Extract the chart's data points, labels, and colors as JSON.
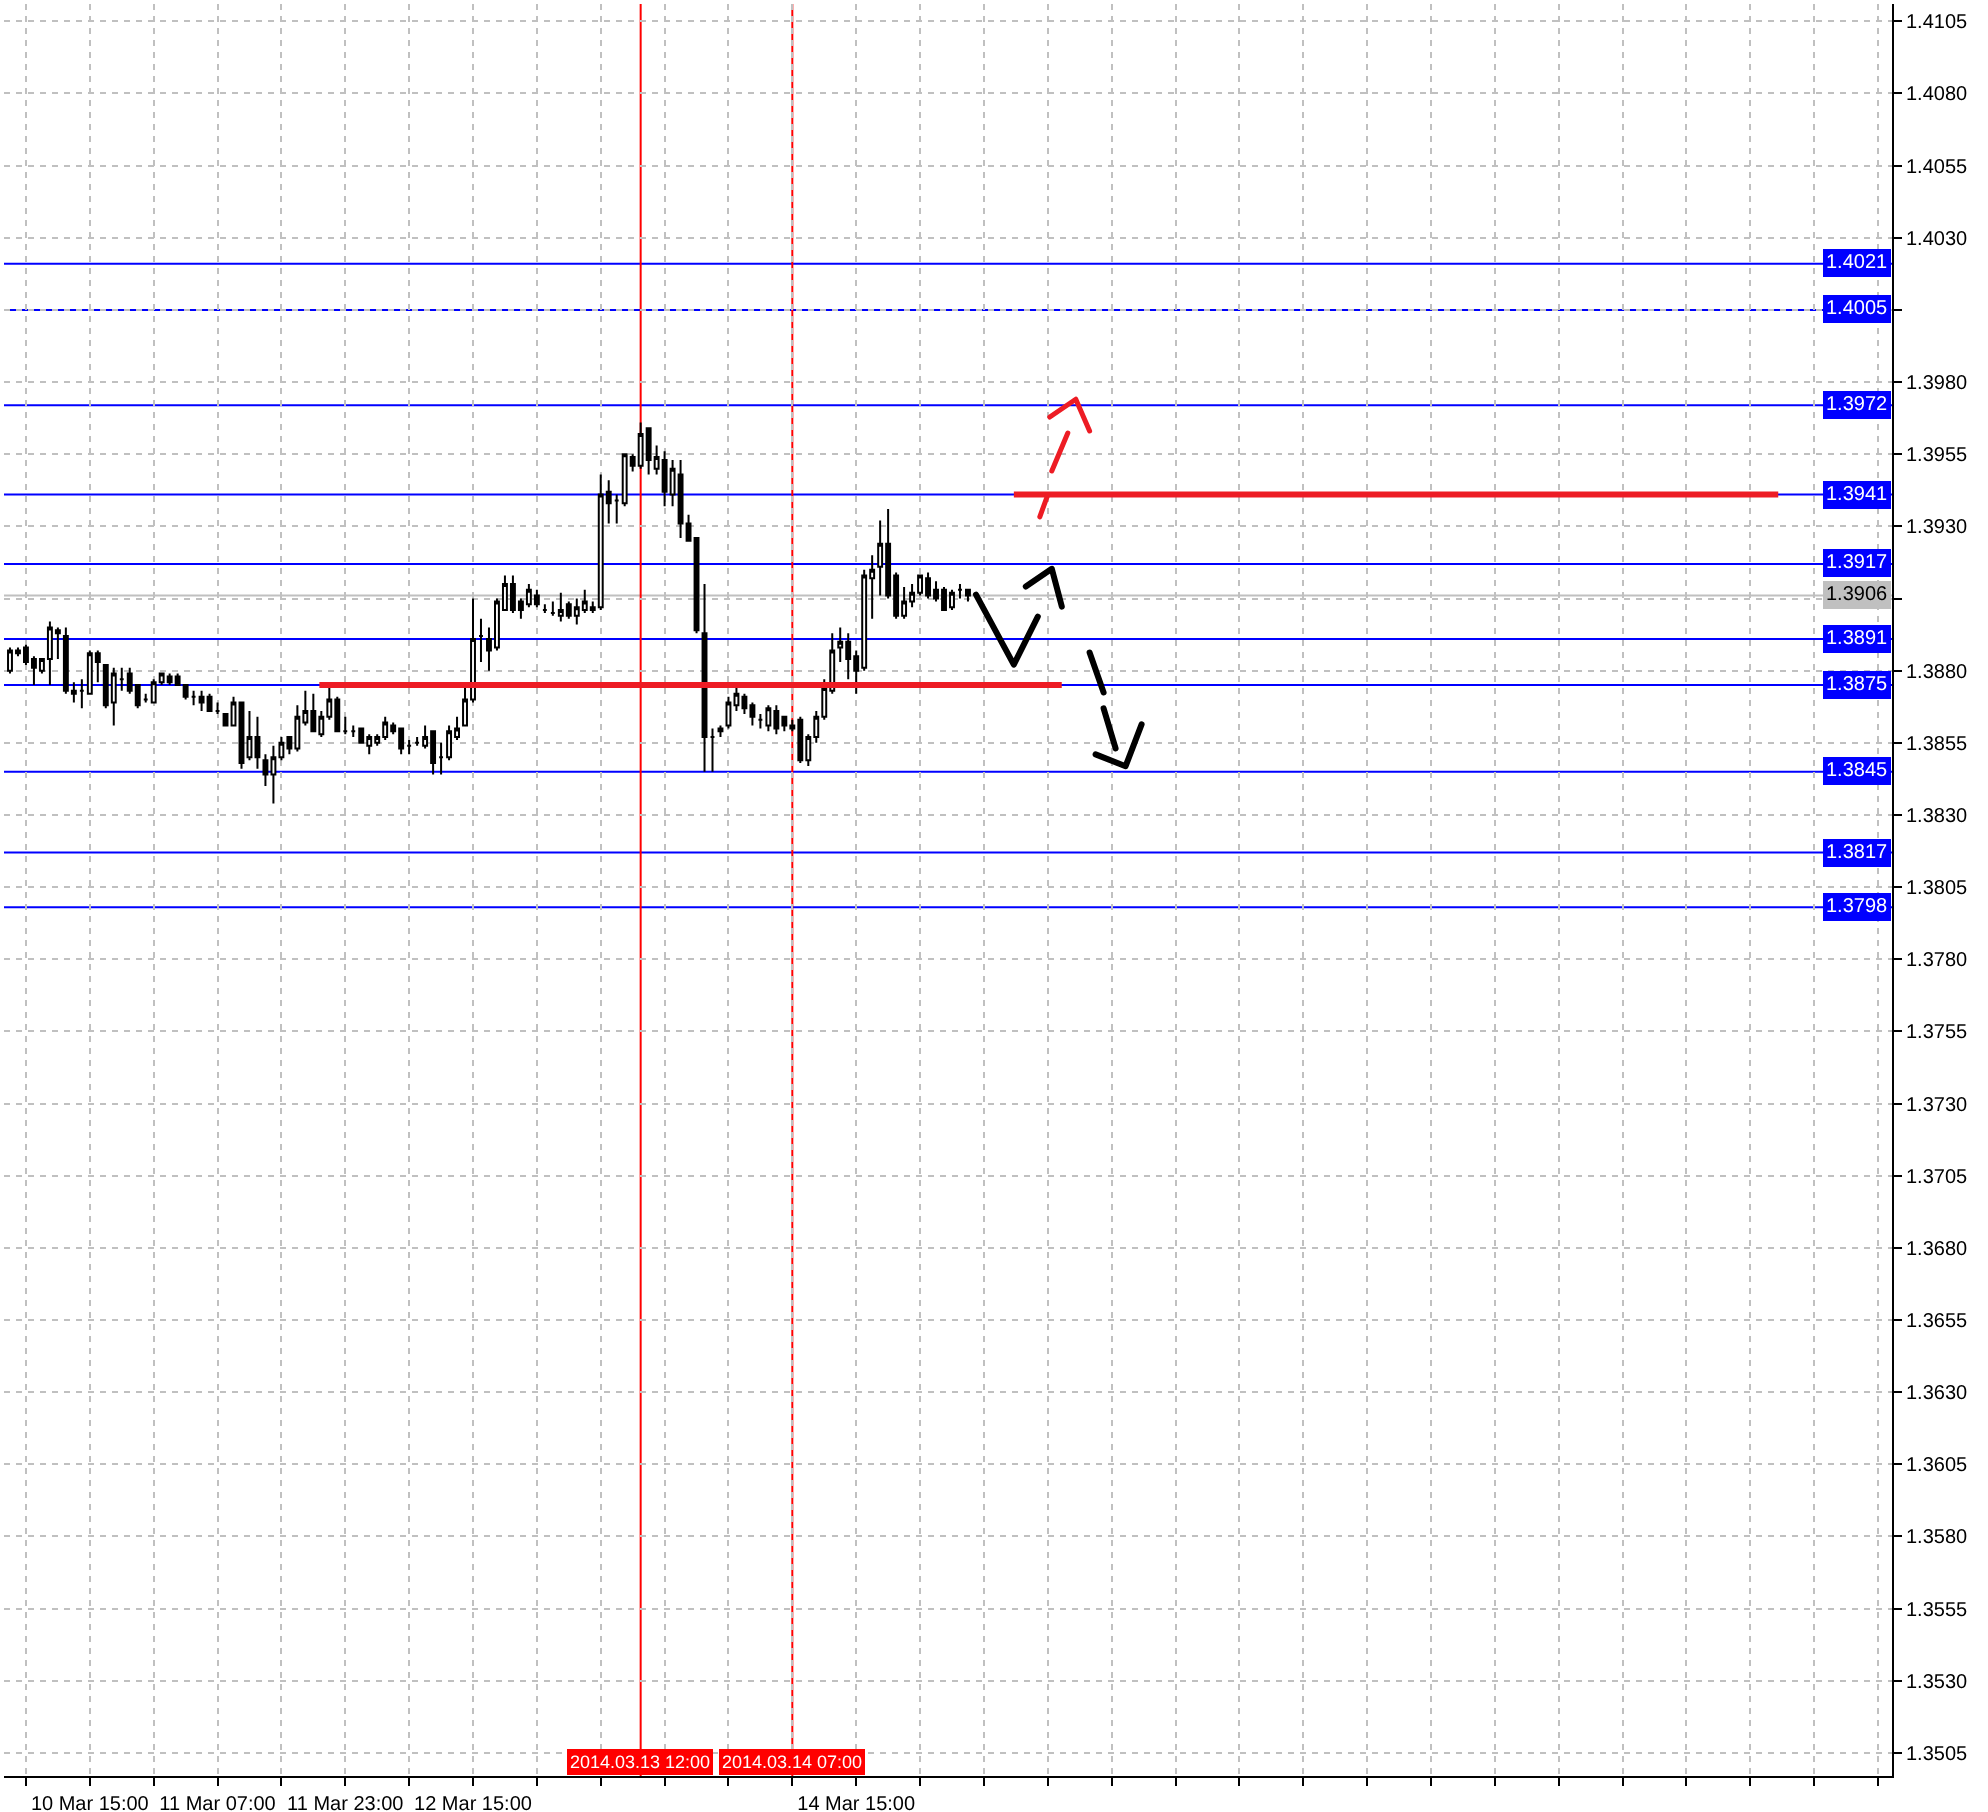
{
  "chart_data": {
    "type": "candlestick",
    "color": "#000000",
    "x": [
      "2014-03-10T05:00",
      "2014-03-10T06:00",
      "2014-03-10T07:00",
      "2014-03-10T08:00",
      "2014-03-10T09:00",
      "2014-03-10T10:00",
      "2014-03-10T11:00",
      "2014-03-10T12:00",
      "2014-03-10T13:00",
      "2014-03-10T14:00",
      "2014-03-10T15:00",
      "2014-03-10T16:00",
      "2014-03-10T17:00",
      "2014-03-10T18:00",
      "2014-03-10T19:00",
      "2014-03-10T20:00",
      "2014-03-10T21:00",
      "2014-03-10T22:00",
      "2014-03-10T23:00",
      "2014-03-11T00:00",
      "2014-03-11T01:00",
      "2014-03-11T02:00",
      "2014-03-11T03:00",
      "2014-03-11T04:00",
      "2014-03-11T05:00",
      "2014-03-11T06:00",
      "2014-03-11T07:00",
      "2014-03-11T08:00",
      "2014-03-11T09:00",
      "2014-03-11T10:00",
      "2014-03-11T11:00",
      "2014-03-11T12:00",
      "2014-03-11T13:00",
      "2014-03-11T14:00",
      "2014-03-11T15:00",
      "2014-03-11T16:00",
      "2014-03-11T17:00",
      "2014-03-11T18:00",
      "2014-03-11T19:00",
      "2014-03-11T20:00",
      "2014-03-11T21:00",
      "2014-03-11T22:00",
      "2014-03-11T23:00",
      "2014-03-12T00:00",
      "2014-03-12T01:00",
      "2014-03-12T02:00",
      "2014-03-12T03:00",
      "2014-03-12T04:00",
      "2014-03-12T05:00",
      "2014-03-12T06:00",
      "2014-03-12T07:00",
      "2014-03-12T08:00",
      "2014-03-12T09:00",
      "2014-03-12T10:00",
      "2014-03-12T11:00",
      "2014-03-12T12:00",
      "2014-03-12T13:00",
      "2014-03-12T14:00",
      "2014-03-12T15:00",
      "2014-03-12T16:00",
      "2014-03-12T17:00",
      "2014-03-12T18:00",
      "2014-03-12T19:00",
      "2014-03-12T20:00",
      "2014-03-12T21:00",
      "2014-03-12T22:00",
      "2014-03-12T23:00",
      "2014-03-13T00:00",
      "2014-03-13T01:00",
      "2014-03-13T02:00",
      "2014-03-13T03:00",
      "2014-03-13T04:00",
      "2014-03-13T05:00",
      "2014-03-13T06:00",
      "2014-03-13T07:00",
      "2014-03-13T08:00",
      "2014-03-13T09:00",
      "2014-03-13T10:00",
      "2014-03-13T11:00",
      "2014-03-13T12:00",
      "2014-03-13T13:00",
      "2014-03-13T14:00",
      "2014-03-13T15:00",
      "2014-03-13T16:00",
      "2014-03-13T17:00",
      "2014-03-13T18:00",
      "2014-03-13T19:00",
      "2014-03-13T20:00",
      "2014-03-13T21:00",
      "2014-03-13T22:00",
      "2014-03-13T23:00",
      "2014-03-14T00:00",
      "2014-03-14T01:00",
      "2014-03-14T02:00",
      "2014-03-14T03:00",
      "2014-03-14T04:00",
      "2014-03-14T05:00",
      "2014-03-14T06:00",
      "2014-03-14T07:00",
      "2014-03-14T08:00",
      "2014-03-14T09:00",
      "2014-03-14T10:00",
      "2014-03-14T11:00",
      "2014-03-14T12:00",
      "2014-03-14T13:00",
      "2014-03-14T14:00",
      "2014-03-14T15:00",
      "2014-03-14T16:00",
      "2014-03-14T17:00",
      "2014-03-14T18:00",
      "2014-03-14T19:00",
      "2014-03-14T20:00",
      "2014-03-14T21:00",
      "2014-03-14T22:00",
      "2014-03-14T23:00",
      "2014-03-15T00:00",
      "2014-03-15T01:00",
      "2014-03-15T02:00",
      "2014-03-15T03:00",
      "2014-03-15T04:00",
      "2014-03-15T05:00"
    ],
    "ohlc": [
      [
        1.388,
        1.3888,
        1.3879,
        1.3887
      ],
      [
        1.3886,
        1.3888,
        1.3885,
        1.3887
      ],
      [
        1.3888,
        1.3889,
        1.3882,
        1.3883
      ],
      [
        1.3884,
        1.3885,
        1.3875,
        1.3881
      ],
      [
        1.388,
        1.3884,
        1.3879,
        1.3884
      ],
      [
        1.3884,
        1.3897,
        1.3875,
        1.3895
      ],
      [
        1.3894,
        1.3895,
        1.3884,
        1.3893
      ],
      [
        1.3892,
        1.3895,
        1.3872,
        1.3873
      ],
      [
        1.3873,
        1.3876,
        1.3869,
        1.3872
      ],
      [
        1.3873,
        1.3877,
        1.3867,
        1.3873
      ],
      [
        1.3872,
        1.3887,
        1.3872,
        1.3886
      ],
      [
        1.3886,
        1.3887,
        1.3876,
        1.3883
      ],
      [
        1.3882,
        1.3882,
        1.3867,
        1.3868
      ],
      [
        1.3869,
        1.3881,
        1.3861,
        1.3879
      ],
      [
        1.3877,
        1.3881,
        1.3873,
        1.3877
      ],
      [
        1.3879,
        1.3881,
        1.3872,
        1.3873
      ],
      [
        1.3875,
        1.3875,
        1.3867,
        1.3868
      ],
      [
        1.387,
        1.3872,
        1.3869,
        1.387
      ],
      [
        1.3869,
        1.3877,
        1.3869,
        1.3876
      ],
      [
        1.3876,
        1.3879,
        1.3875,
        1.3879
      ],
      [
        1.3878,
        1.3879,
        1.3875,
        1.3876
      ],
      [
        1.3878,
        1.3879,
        1.3875,
        1.3875
      ],
      [
        1.3875,
        1.3875,
        1.387,
        1.3871
      ],
      [
        1.3871,
        1.3873,
        1.3868,
        1.3871
      ],
      [
        1.3871,
        1.3873,
        1.3866,
        1.3869
      ],
      [
        1.3871,
        1.3872,
        1.3866,
        1.3866
      ],
      [
        1.3866,
        1.3869,
        1.3865,
        1.3866
      ],
      [
        1.3865,
        1.3865,
        1.3861,
        1.3861
      ],
      [
        1.3861,
        1.3871,
        1.3861,
        1.3869
      ],
      [
        1.3869,
        1.3869,
        1.3846,
        1.3848
      ],
      [
        1.385,
        1.3866,
        1.3849,
        1.3857
      ],
      [
        1.3857,
        1.3864,
        1.3846,
        1.385
      ],
      [
        1.3849,
        1.3851,
        1.384,
        1.3844
      ],
      [
        1.3844,
        1.3854,
        1.3834,
        1.385
      ],
      [
        1.385,
        1.3857,
        1.3849,
        1.3855
      ],
      [
        1.3857,
        1.3857,
        1.3851,
        1.3853
      ],
      [
        1.3853,
        1.3868,
        1.3852,
        1.3864
      ],
      [
        1.3862,
        1.3873,
        1.3861,
        1.3866
      ],
      [
        1.3866,
        1.3872,
        1.3859,
        1.3859
      ],
      [
        1.3858,
        1.3866,
        1.3857,
        1.3864
      ],
      [
        1.3864,
        1.3875,
        1.3863,
        1.387
      ],
      [
        1.387,
        1.3871,
        1.3859,
        1.3859
      ],
      [
        1.3859,
        1.3864,
        1.3858,
        1.3859
      ],
      [
        1.3859,
        1.3861,
        1.3857,
        1.3859
      ],
      [
        1.386,
        1.386,
        1.3855,
        1.3855
      ],
      [
        1.3854,
        1.3858,
        1.3851,
        1.3857
      ],
      [
        1.3855,
        1.3858,
        1.3854,
        1.3857
      ],
      [
        1.3857,
        1.3864,
        1.3856,
        1.3862
      ],
      [
        1.3861,
        1.3862,
        1.3858,
        1.3859
      ],
      [
        1.386,
        1.386,
        1.3851,
        1.3853
      ],
      [
        1.3854,
        1.3856,
        1.3851,
        1.3854
      ],
      [
        1.3855,
        1.3857,
        1.3854,
        1.3855
      ],
      [
        1.3854,
        1.3861,
        1.3853,
        1.3857
      ],
      [
        1.3859,
        1.3859,
        1.3844,
        1.3848
      ],
      [
        1.385,
        1.3855,
        1.3844,
        1.385
      ],
      [
        1.385,
        1.3861,
        1.3849,
        1.3859
      ],
      [
        1.3857,
        1.3864,
        1.3856,
        1.386
      ],
      [
        1.3861,
        1.3875,
        1.3861,
        1.387
      ],
      [
        1.387,
        1.3905,
        1.3869,
        1.3891
      ],
      [
        1.3892,
        1.3898,
        1.3883,
        1.3892
      ],
      [
        1.3891,
        1.3895,
        1.388,
        1.3887
      ],
      [
        1.3888,
        1.3905,
        1.3887,
        1.3904
      ],
      [
        1.3901,
        1.3913,
        1.3901,
        1.391
      ],
      [
        1.391,
        1.3913,
        1.39,
        1.3901
      ],
      [
        1.3904,
        1.3905,
        1.3898,
        1.3901
      ],
      [
        1.3903,
        1.391,
        1.3902,
        1.3908
      ],
      [
        1.3906,
        1.3908,
        1.3902,
        1.3903
      ],
      [
        1.3901,
        1.3903,
        1.39,
        1.3901
      ],
      [
        1.39,
        1.3904,
        1.3899,
        1.39
      ],
      [
        1.3899,
        1.3907,
        1.3897,
        1.3901
      ],
      [
        1.3903,
        1.3904,
        1.3898,
        1.3899
      ],
      [
        1.3899,
        1.3905,
        1.3896,
        1.3902
      ],
      [
        1.3901,
        1.3908,
        1.39,
        1.3904
      ],
      [
        1.3902,
        1.3904,
        1.39,
        1.3901
      ],
      [
        1.3902,
        1.3948,
        1.3901,
        1.3941
      ],
      [
        1.3942,
        1.3946,
        1.3931,
        1.3938
      ],
      [
        1.3939,
        1.3941,
        1.3931,
        1.3939
      ],
      [
        1.3938,
        1.3955,
        1.3937,
        1.3955
      ],
      [
        1.3954,
        1.3955,
        1.3949,
        1.3951
      ],
      [
        1.3951,
        1.3966,
        1.395,
        1.3962
      ],
      [
        1.3964,
        1.3964,
        1.3948,
        1.3953
      ],
      [
        1.395,
        1.3958,
        1.3948,
        1.3954
      ],
      [
        1.3953,
        1.3956,
        1.3937,
        1.3942
      ],
      [
        1.3941,
        1.3953,
        1.3937,
        1.395
      ],
      [
        1.3948,
        1.3953,
        1.3926,
        1.3931
      ],
      [
        1.3931,
        1.3934,
        1.3925,
        1.3925
      ],
      [
        1.3926,
        1.3926,
        1.3893,
        1.3894
      ],
      [
        1.3893,
        1.391,
        1.3845,
        1.3857
      ],
      [
        1.3857,
        1.386,
        1.3845,
        1.3857
      ],
      [
        1.3859,
        1.3861,
        1.3857,
        1.386
      ],
      [
        1.3861,
        1.3871,
        1.386,
        1.3869
      ],
      [
        1.3868,
        1.3875,
        1.3866,
        1.3872
      ],
      [
        1.3871,
        1.3872,
        1.3865,
        1.3867
      ],
      [
        1.3868,
        1.3869,
        1.3861,
        1.3864
      ],
      [
        1.3863,
        1.3865,
        1.386,
        1.3863
      ],
      [
        1.3861,
        1.3868,
        1.3859,
        1.3867
      ],
      [
        1.3866,
        1.3868,
        1.3858,
        1.386
      ],
      [
        1.3864,
        1.3864,
        1.3859,
        1.3861
      ],
      [
        1.386,
        1.3863,
        1.3859,
        1.3861
      ],
      [
        1.3863,
        1.3864,
        1.3848,
        1.3849
      ],
      [
        1.3849,
        1.3858,
        1.3847,
        1.3857
      ],
      [
        1.3857,
        1.3866,
        1.3855,
        1.3864
      ],
      [
        1.3864,
        1.3877,
        1.3863,
        1.3874
      ],
      [
        1.3873,
        1.3893,
        1.3872,
        1.3887
      ],
      [
        1.3888,
        1.3895,
        1.3883,
        1.389
      ],
      [
        1.389,
        1.3893,
        1.3877,
        1.3884
      ],
      [
        1.3885,
        1.3887,
        1.3872,
        1.388
      ],
      [
        1.3881,
        1.3915,
        1.388,
        1.3913
      ],
      [
        1.3912,
        1.392,
        1.3898,
        1.3915
      ],
      [
        1.3916,
        1.3932,
        1.3906,
        1.3924
      ],
      [
        1.3924,
        1.3936,
        1.3905,
        1.3906
      ],
      [
        1.3913,
        1.3914,
        1.3898,
        1.3899
      ],
      [
        1.3899,
        1.3909,
        1.3898,
        1.3904
      ],
      [
        1.3904,
        1.391,
        1.3902,
        1.3907
      ],
      [
        1.3907,
        1.3913,
        1.3906,
        1.3913
      ],
      [
        1.3912,
        1.3914,
        1.3905,
        1.3906
      ],
      [
        1.3908,
        1.3911,
        1.3904,
        1.3905
      ],
      [
        1.3908,
        1.3909,
        1.3901,
        1.3901
      ],
      [
        1.3902,
        1.3908,
        1.3901,
        1.3907
      ],
      [
        1.3908,
        1.391,
        1.3905,
        1.3908
      ],
      [
        1.3908,
        1.3908,
        1.3904,
        1.3906
      ]
    ],
    "series": [
      {
        "type": "line",
        "color": "#ed1c24",
        "x": [
          "2014-03-11T19:45",
          "2014-03-15T16:45"
        ],
        "values": [
          1.3875,
          1.3875
        ]
      },
      {
        "type": "line",
        "color": "#ed1c24",
        "x": [
          "2014-03-15T10:45",
          "2014-03-19T10:30"
        ],
        "values": [
          1.3941,
          1.3941
        ]
      }
    ],
    "xlim": [
      "2014-03-10T04:15",
      "2014-03-20T00:45"
    ],
    "xticks": [
      {
        "value": "2014-03-10T07:00",
        "label": null
      },
      {
        "value": "2014-03-10T15:00",
        "label": "10 Mar 15:00"
      },
      {
        "value": "2014-03-10T23:00",
        "label": null
      },
      {
        "value": "2014-03-11T07:00",
        "label": "11 Mar 07:00"
      },
      {
        "value": "2014-03-11T15:00",
        "label": null
      },
      {
        "value": "2014-03-11T23:00",
        "label": "11 Mar 23:00"
      },
      {
        "value": "2014-03-12T07:00",
        "label": null
      },
      {
        "value": "2014-03-12T15:00",
        "label": "12 Mar 15:00"
      },
      {
        "value": "2014-03-12T23:00",
        "label": null
      },
      {
        "value": "2014-03-13T07:00",
        "label": null
      },
      {
        "value": "2014-03-13T15:00",
        "label": null
      },
      {
        "value": "2014-03-13T23:00",
        "label": null
      },
      {
        "value": "2014-03-14T07:00",
        "label": null
      },
      {
        "value": "2014-03-14T15:00",
        "label": "14 Mar 15:00"
      },
      {
        "value": "2014-03-14T23:00",
        "label": null
      },
      {
        "value": "2014-03-15T07:00",
        "label": null
      },
      {
        "value": "2014-03-15T15:00",
        "label": null
      },
      {
        "value": "2014-03-15T23:00",
        "label": null
      },
      {
        "value": "2014-03-16T07:00",
        "label": null
      },
      {
        "value": "2014-03-16T15:00",
        "label": null
      },
      {
        "value": "2014-03-16T23:00",
        "label": null
      },
      {
        "value": "2014-03-17T07:00",
        "label": null
      },
      {
        "value": "2014-03-17T15:00",
        "label": null
      },
      {
        "value": "2014-03-17T23:00",
        "label": null
      },
      {
        "value": "2014-03-18T07:00",
        "label": null
      },
      {
        "value": "2014-03-18T15:00",
        "label": null
      },
      {
        "value": "2014-03-18T23:00",
        "label": null
      },
      {
        "value": "2014-03-19T07:00",
        "label": null
      },
      {
        "value": "2014-03-19T15:00",
        "label": null
      },
      {
        "value": "2014-03-19T23:00",
        "label": null
      }
    ],
    "ylim": [
      1.3497,
      1.4111
    ],
    "yticks": [
      {
        "value": 1.3505,
        "label": "1.3505"
      },
      {
        "value": 1.353,
        "label": "1.3530"
      },
      {
        "value": 1.3555,
        "label": "1.3555"
      },
      {
        "value": 1.358,
        "label": "1.3580"
      },
      {
        "value": 1.3605,
        "label": "1.3605"
      },
      {
        "value": 1.363,
        "label": "1.3630"
      },
      {
        "value": 1.3655,
        "label": "1.3655"
      },
      {
        "value": 1.368,
        "label": "1.3680"
      },
      {
        "value": 1.3705,
        "label": "1.3705"
      },
      {
        "value": 1.373,
        "label": "1.3730"
      },
      {
        "value": 1.3755,
        "label": "1.3755"
      },
      {
        "value": 1.378,
        "label": "1.3780"
      },
      {
        "value": 1.3805,
        "label": "1.3805"
      },
      {
        "value": 1.383,
        "label": "1.3830"
      },
      {
        "value": 1.3855,
        "label": "1.3855"
      },
      {
        "value": 1.388,
        "label": "1.3880"
      },
      {
        "value": 1.3905,
        "label": null
      },
      {
        "value": 1.393,
        "label": "1.3930"
      },
      {
        "value": 1.3955,
        "label": "1.3955"
      },
      {
        "value": 1.398,
        "label": "1.3980"
      },
      {
        "value": 1.4005,
        "label": null
      },
      {
        "value": 1.403,
        "label": "1.4030"
      },
      {
        "value": 1.4055,
        "label": "1.4055"
      },
      {
        "value": 1.408,
        "label": "1.4080"
      },
      {
        "value": 1.4105,
        "label": "1.4105"
      }
    ],
    "ref_lines": [
      {
        "axis": "y",
        "value": 1.4021,
        "label": "1.4021",
        "color": "#0000ff"
      },
      {
        "axis": "y",
        "value": 1.4005,
        "label": "1.4005",
        "color": "#0000ff"
      },
      {
        "axis": "y",
        "value": 1.3972,
        "label": "1.3972",
        "color": "#0000ff"
      },
      {
        "axis": "y",
        "value": 1.3941,
        "label": "1.3941",
        "color": "#0000ff"
      },
      {
        "axis": "y",
        "value": 1.3917,
        "label": "1.3917",
        "color": "#0000ff"
      },
      {
        "axis": "y",
        "value": 1.3906,
        "label": "1.3906",
        "color": "#c0c0c0"
      },
      {
        "axis": "y",
        "value": 1.3891,
        "label": "1.3891",
        "color": "#0000ff"
      },
      {
        "axis": "y",
        "value": 1.3875,
        "label": "1.3875",
        "color": "#0000ff"
      },
      {
        "axis": "y",
        "value": 1.3845,
        "label": "1.3845",
        "color": "#0000ff"
      },
      {
        "axis": "y",
        "value": 1.3817,
        "label": "1.3817",
        "color": "#0000ff"
      },
      {
        "axis": "y",
        "value": 1.3798,
        "label": "1.3798",
        "color": "#0000ff"
      },
      {
        "axis": "x",
        "value": "2014-03-13T12:00",
        "label": "2014.03.13 12:00",
        "color": "#ff0000"
      },
      {
        "axis": "x",
        "value": "2014-03-14T07:00",
        "label": "2014.03.14 07:00",
        "color": "#ff0000"
      }
    ],
    "grid": true
  }
}
